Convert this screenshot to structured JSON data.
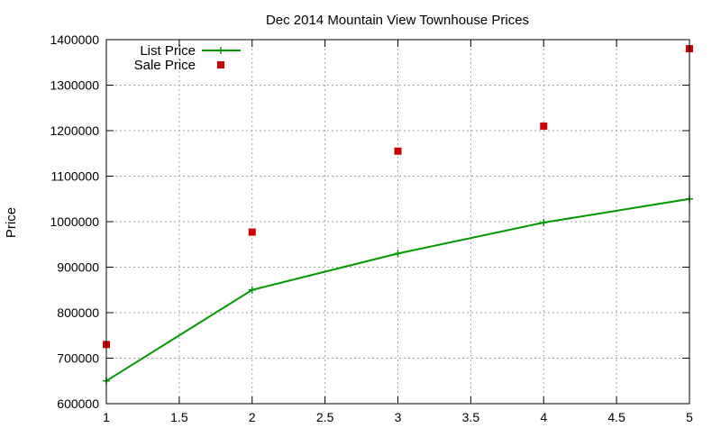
{
  "chart_data": {
    "type": "line",
    "title": "Dec 2014 Mountain View Townhouse Prices",
    "xlabel": "",
    "ylabel": "Price",
    "xlim": [
      1,
      5
    ],
    "ylim": [
      600000,
      1400000
    ],
    "x_ticks": [
      "1",
      "1.5",
      "2",
      "2.5",
      "3",
      "3.5",
      "4",
      "4.5",
      "5"
    ],
    "y_ticks": [
      "600000",
      "700000",
      "800000",
      "900000",
      "1000000",
      "1100000",
      "1200000",
      "1300000",
      "1400000"
    ],
    "grid": true,
    "legend_position": "top-left",
    "series": [
      {
        "name": "List Price",
        "style": "line-with-plus-markers",
        "color": "#009900",
        "x": [
          1,
          2,
          3,
          4,
          5
        ],
        "values": [
          650000,
          850000,
          930000,
          998000,
          1050000
        ]
      },
      {
        "name": "Sale Price",
        "style": "square-markers",
        "color": "#cc0000",
        "x": [
          1,
          2,
          3,
          4,
          5
        ],
        "values": [
          730000,
          977000,
          1155000,
          1210000,
          1380000
        ]
      }
    ]
  }
}
